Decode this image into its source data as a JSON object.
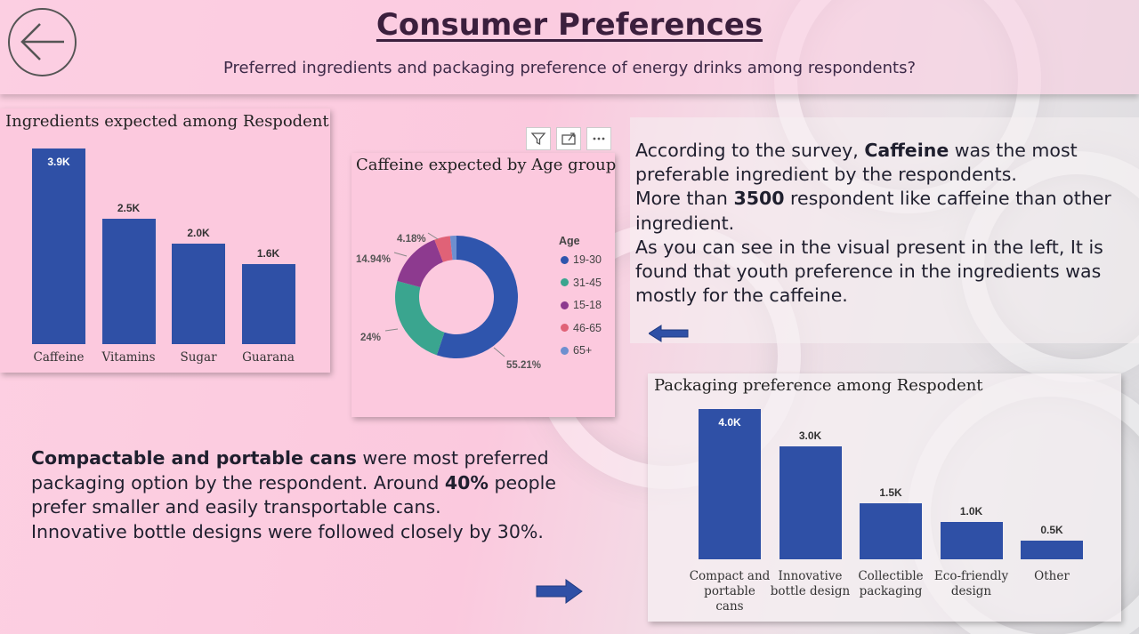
{
  "header": {
    "title": "Consumer Preferences",
    "subtitle": "Preferred ingredients and packaging preference of energy drinks among respondents?"
  },
  "colors": {
    "bar": "#2f50a6",
    "accent": "#3b1f3d",
    "panel_bg": "#fcc9de"
  },
  "icons": {
    "back": "back-arrow-icon",
    "filter": "filter-icon",
    "focus": "focus-mode-icon",
    "more": "more-options-icon"
  },
  "text": {
    "right_block": [
      [
        "According to the survey, ",
        "Caffeine",
        " was the most"
      ],
      [
        "preferable ingredient by the respondents.",
        "",
        ""
      ],
      [
        "More than ",
        "3500",
        " respondent like caffeine than other"
      ],
      [
        "ingredient.",
        "",
        ""
      ],
      [
        "As you can see in the visual present in the left, It is",
        "",
        ""
      ],
      [
        "found that youth preference in the ingredients was",
        "",
        ""
      ],
      [
        "mostly for the caffeine.",
        "",
        ""
      ]
    ],
    "left_block": [
      [
        "",
        "Compactable and portable cans",
        " were most preferred"
      ],
      [
        "packaging option by the respondent. Around ",
        "40%",
        " people"
      ],
      [
        "prefer smaller and easily transportable cans.",
        "",
        ""
      ],
      [
        "Innovative bottle designs were followed closely by 30%.",
        "",
        ""
      ]
    ]
  },
  "chart_data": [
    {
      "type": "bar",
      "title": "Ingredients expected among Respodent",
      "categories": [
        "Caffeine",
        "Vitamins",
        "Sugar",
        "Guarana"
      ],
      "values": [
        3.9,
        2.5,
        2.0,
        1.6
      ],
      "data_labels": [
        "3.9K",
        "2.5K",
        "2.0K",
        "1.6K"
      ],
      "unit": "K",
      "ylim": [
        0,
        3.9
      ]
    },
    {
      "type": "pie",
      "title": "Caffeine expected by Age group",
      "legend_title": "Age",
      "categories": [
        "19-30",
        "31-45",
        "15-18",
        "46-65",
        "65+"
      ],
      "values": [
        55.21,
        24,
        14.94,
        4.18,
        1.67
      ],
      "data_labels": [
        "55.21%",
        "24%",
        "14.94%",
        "4.18%",
        ""
      ],
      "colors": [
        "#2f55ad",
        "#3aa58f",
        "#8d3a8f",
        "#e06277",
        "#6e8fcf"
      ],
      "donut": true,
      "legend_position": "right"
    },
    {
      "type": "bar",
      "title": "Packaging preference among Respodent",
      "categories": [
        "Compact and portable cans",
        "Innovative bottle design",
        "Collectible packaging",
        "Eco-friendly design",
        "Other"
      ],
      "category_lines": [
        [
          "Compact and",
          "portable",
          "cans"
        ],
        [
          "Innovative",
          "bottle design"
        ],
        [
          "Collectible",
          "packaging"
        ],
        [
          "Eco-friendly",
          "design"
        ],
        [
          "Other"
        ]
      ],
      "values": [
        4.0,
        3.0,
        1.5,
        1.0,
        0.5
      ],
      "data_labels": [
        "4.0K",
        "3.0K",
        "1.5K",
        "1.0K",
        "0.5K"
      ],
      "unit": "K",
      "ylim": [
        0,
        4.0
      ]
    }
  ]
}
